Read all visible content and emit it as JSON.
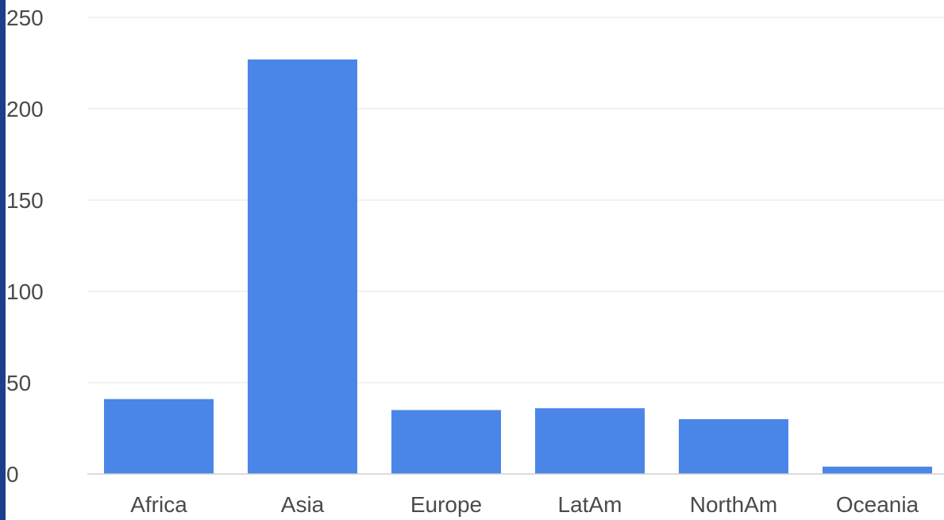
{
  "colors": {
    "bar": "#4a86e8",
    "grid": "#e6e6e6",
    "axis": "#cfcfcf",
    "text": "#4a4a4a",
    "left_edge": "#1b3f8a"
  },
  "chart_data": {
    "type": "bar",
    "categories": [
      "Africa",
      "Asia",
      "Europe",
      "LatAm",
      "NorthAm",
      "Oceania"
    ],
    "values": [
      41,
      227,
      35,
      36,
      30,
      4
    ],
    "title": "",
    "xlabel": "",
    "ylabel": "",
    "ylim": [
      0,
      250
    ],
    "yticks": [
      "0",
      "50",
      "100",
      "150",
      "200",
      "250"
    ],
    "grid": true,
    "legend": "none"
  }
}
